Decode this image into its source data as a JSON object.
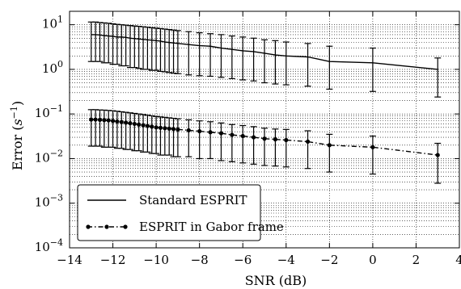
{
  "chart_data": {
    "type": "line",
    "xlabel": "SNR (dB)",
    "ylabel_text": "Error (",
    "ylabel_unit_base": "s",
    "ylabel_unit_exp": "−1",
    "ylabel_close": ")",
    "xlim": [
      -14,
      4
    ],
    "ylim": [
      0.0001,
      20
    ],
    "yscale": "log",
    "grid": true,
    "legend_position": "lower-left",
    "x_ticks": [
      -14,
      -12,
      -10,
      -8,
      -6,
      -4,
      -2,
      0,
      2,
      4
    ],
    "x_tick_labels": [
      "−14",
      "−12",
      "−10",
      "−8",
      "−6",
      "−4",
      "−2",
      "0",
      "2",
      "4"
    ],
    "y_ticks": [
      0.0001,
      0.001,
      0.01,
      0.1,
      1,
      10
    ],
    "y_tick_base": "10",
    "y_tick_exps": [
      "−4",
      "−3",
      "−2",
      "−1",
      "0",
      "1"
    ],
    "series": [
      {
        "name": "Standard ESPRIT",
        "style": "solid",
        "marker": "none",
        "x": [
          -13,
          -12.8,
          -12.6,
          -12.4,
          -12.2,
          -12,
          -11.8,
          -11.6,
          -11.4,
          -11.2,
          -11,
          -10.8,
          -10.6,
          -10.4,
          -10.2,
          -10,
          -9.8,
          -9.6,
          -9.4,
          -9.2,
          -9,
          -8.5,
          -8,
          -7.5,
          -7,
          -6.5,
          -6,
          -5.5,
          -5,
          -4.5,
          -4,
          -3,
          -2,
          0,
          3
        ],
        "y": [
          6.0,
          6.0,
          5.9,
          5.7,
          5.6,
          5.5,
          5.3,
          5.3,
          5.2,
          5.0,
          4.9,
          4.8,
          4.7,
          4.6,
          4.5,
          4.4,
          4.3,
          4.1,
          4.0,
          3.9,
          3.8,
          3.6,
          3.4,
          3.3,
          3.0,
          2.8,
          2.6,
          2.5,
          2.3,
          2.1,
          2.0,
          1.9,
          1.5,
          1.4,
          1.0
        ],
        "err_low": [
          1.5,
          1.5,
          1.5,
          1.4,
          1.4,
          1.3,
          1.3,
          1.2,
          1.2,
          1.1,
          1.1,
          1.05,
          1.0,
          1.0,
          0.95,
          0.95,
          0.9,
          0.88,
          0.85,
          0.82,
          0.8,
          0.75,
          0.72,
          0.7,
          0.66,
          0.62,
          0.58,
          0.55,
          0.5,
          0.47,
          0.45,
          0.42,
          0.36,
          0.32,
          0.24
        ],
        "err_high": [
          11.5,
          11.5,
          11.2,
          11.0,
          10.8,
          10.5,
          10.2,
          10.0,
          9.8,
          9.6,
          9.4,
          9.2,
          9.0,
          8.8,
          8.6,
          8.4,
          8.2,
          8.0,
          7.8,
          7.6,
          7.4,
          7.0,
          6.6,
          6.3,
          6.0,
          5.6,
          5.3,
          5.0,
          4.6,
          4.4,
          4.1,
          3.8,
          3.3,
          3.0,
          1.8
        ]
      },
      {
        "name": "ESPRIT in Gabor frame",
        "style": "dashdot",
        "marker": "circle",
        "x": [
          -13,
          -12.8,
          -12.6,
          -12.4,
          -12.2,
          -12,
          -11.8,
          -11.6,
          -11.4,
          -11.2,
          -11,
          -10.8,
          -10.6,
          -10.4,
          -10.2,
          -10,
          -9.8,
          -9.6,
          -9.4,
          -9.2,
          -9,
          -8.5,
          -8,
          -7.5,
          -7,
          -6.5,
          -6,
          -5.5,
          -5,
          -4.5,
          -4,
          -3,
          -2,
          0,
          3
        ],
        "y": [
          0.075,
          0.075,
          0.074,
          0.073,
          0.072,
          0.07,
          0.068,
          0.066,
          0.064,
          0.062,
          0.06,
          0.058,
          0.056,
          0.054,
          0.052,
          0.05,
          0.049,
          0.048,
          0.047,
          0.046,
          0.045,
          0.043,
          0.041,
          0.039,
          0.037,
          0.034,
          0.032,
          0.03,
          0.028,
          0.027,
          0.026,
          0.024,
          0.02,
          0.018,
          0.012
        ],
        "err_low": [
          0.019,
          0.019,
          0.019,
          0.018,
          0.018,
          0.018,
          0.017,
          0.017,
          0.016,
          0.016,
          0.015,
          0.015,
          0.014,
          0.014,
          0.013,
          0.013,
          0.012,
          0.012,
          0.012,
          0.011,
          0.011,
          0.011,
          0.01,
          0.01,
          0.009,
          0.0085,
          0.008,
          0.0075,
          0.007,
          0.0068,
          0.0065,
          0.006,
          0.005,
          0.0045,
          0.0028
        ],
        "err_high": [
          0.125,
          0.125,
          0.123,
          0.122,
          0.12,
          0.118,
          0.115,
          0.112,
          0.109,
          0.106,
          0.103,
          0.1,
          0.097,
          0.094,
          0.091,
          0.088,
          0.086,
          0.084,
          0.082,
          0.08,
          0.078,
          0.074,
          0.07,
          0.067,
          0.063,
          0.058,
          0.055,
          0.052,
          0.048,
          0.046,
          0.045,
          0.042,
          0.035,
          0.032,
          0.022
        ]
      }
    ]
  }
}
